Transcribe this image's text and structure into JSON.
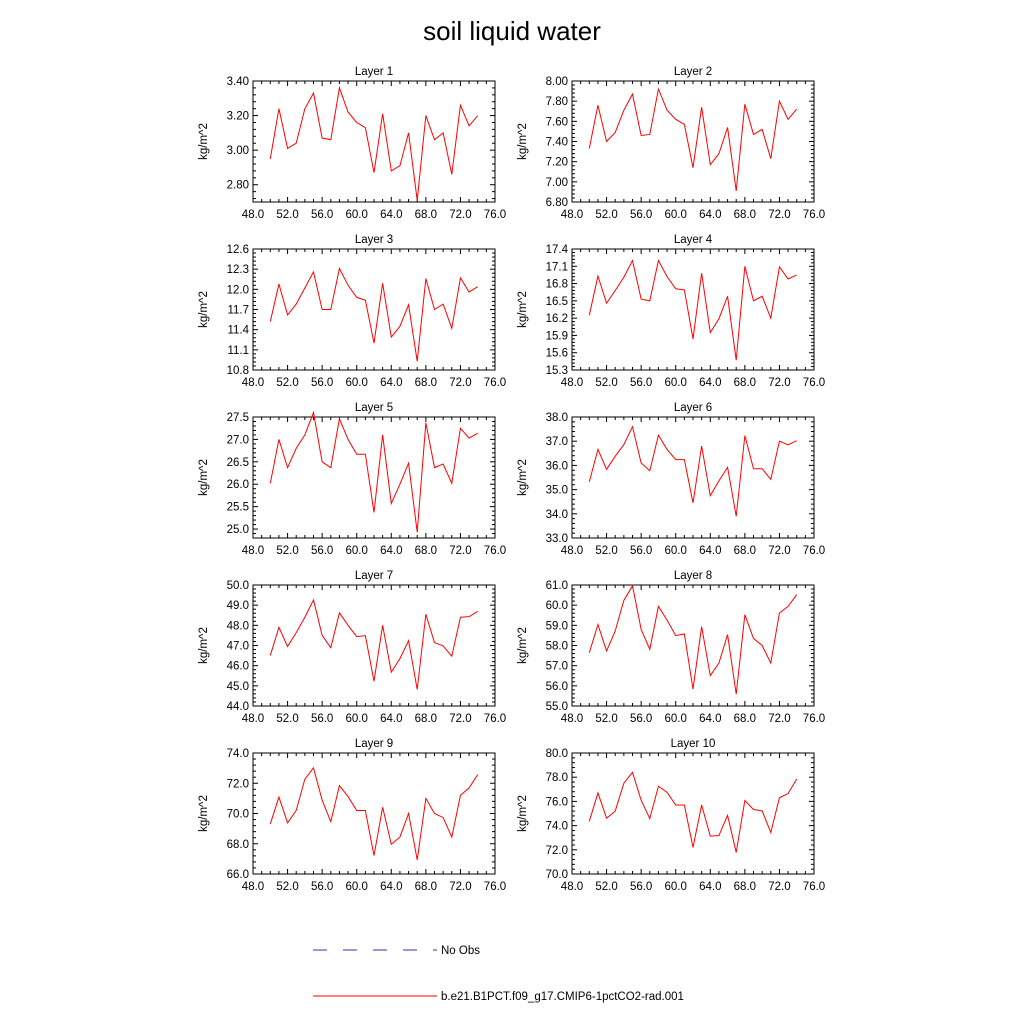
{
  "figure_title": "soil liquid water",
  "legend": [
    {
      "label": "No Obs",
      "color": "#3333aa",
      "dash": true
    },
    {
      "label": "b.e21.B1PCT.f09_g17.CMIP6-1pctCO2-rad.001",
      "color": "#ff0000",
      "dash": false
    }
  ],
  "chart_data": [
    {
      "type": "line",
      "title": "Layer 1",
      "ylabel": "kg/m^2",
      "xlim": [
        48,
        76
      ],
      "ylim": [
        2.7,
        3.4
      ],
      "xticks": [
        "48.0",
        "52.0",
        "56.0",
        "60.0",
        "64.0",
        "68.0",
        "72.0",
        "76.0"
      ],
      "yticks": [
        2.8,
        3.0,
        3.2,
        3.4
      ],
      "yticklabels": [
        "2.80",
        "3.00",
        "3.20",
        "3.40"
      ],
      "x": [
        50,
        51,
        52,
        53,
        54,
        55,
        56,
        57,
        58,
        59,
        60,
        61,
        62,
        63,
        64,
        65,
        66,
        67,
        68,
        69,
        70,
        71,
        72,
        73,
        74
      ],
      "series": [
        {
          "color": "#ff0000",
          "values": [
            2.95,
            3.24,
            3.01,
            3.04,
            3.24,
            3.33,
            3.07,
            3.06,
            3.36,
            3.22,
            3.16,
            3.13,
            2.87,
            3.21,
            2.88,
            2.91,
            3.1,
            2.71,
            3.2,
            3.06,
            3.1,
            2.86,
            3.26,
            3.14,
            3.2
          ]
        }
      ]
    },
    {
      "type": "line",
      "title": "Layer 2",
      "ylabel": "kg/m^2",
      "xlim": [
        48,
        76
      ],
      "ylim": [
        6.8,
        8.0
      ],
      "xticks": [
        "48.0",
        "52.0",
        "56.0",
        "60.0",
        "64.0",
        "68.0",
        "72.0",
        "76.0"
      ],
      "yticks": [
        6.8,
        7.0,
        7.2,
        7.4,
        7.6,
        7.8,
        8.0
      ],
      "yticklabels": [
        "6.80",
        "7.00",
        "7.20",
        "7.40",
        "7.60",
        "7.80",
        "8.00"
      ],
      "x": [
        50,
        51,
        52,
        53,
        54,
        55,
        56,
        57,
        58,
        59,
        60,
        61,
        62,
        63,
        64,
        65,
        66,
        67,
        68,
        69,
        70,
        71,
        72,
        73,
        74
      ],
      "series": [
        {
          "color": "#ff0000",
          "values": [
            7.33,
            7.76,
            7.4,
            7.49,
            7.71,
            7.87,
            7.46,
            7.47,
            7.92,
            7.71,
            7.62,
            7.57,
            7.14,
            7.74,
            7.17,
            7.28,
            7.54,
            6.91,
            7.77,
            7.47,
            7.52,
            7.23,
            7.8,
            7.62,
            7.72
          ]
        }
      ]
    },
    {
      "type": "line",
      "title": "Layer 3",
      "ylabel": "kg/m^2",
      "xlim": [
        48,
        76
      ],
      "ylim": [
        10.8,
        12.6
      ],
      "xticks": [
        "48.0",
        "52.0",
        "56.0",
        "60.0",
        "64.0",
        "68.0",
        "72.0",
        "76.0"
      ],
      "yticks": [
        10.8,
        11.1,
        11.4,
        11.7,
        12.0,
        12.3,
        12.6
      ],
      "yticklabels": [
        "10.8",
        "11.1",
        "11.4",
        "11.7",
        "12.0",
        "12.3",
        "12.6"
      ],
      "x": [
        50,
        51,
        52,
        53,
        54,
        55,
        56,
        57,
        58,
        59,
        60,
        61,
        62,
        63,
        64,
        65,
        66,
        67,
        68,
        69,
        70,
        71,
        72,
        73,
        74
      ],
      "series": [
        {
          "color": "#ff0000",
          "values": [
            11.52,
            12.08,
            11.62,
            11.78,
            12.02,
            12.26,
            11.7,
            11.7,
            12.31,
            12.06,
            11.88,
            11.84,
            11.2,
            12.09,
            11.29,
            11.45,
            11.77,
            10.93,
            12.16,
            11.7,
            11.78,
            11.42,
            12.17,
            11.96,
            12.04
          ]
        }
      ]
    },
    {
      "type": "line",
      "title": "Layer 4",
      "ylabel": "kg/m^2",
      "xlim": [
        48,
        76
      ],
      "ylim": [
        15.3,
        17.4
      ],
      "xticks": [
        "48.0",
        "52.0",
        "56.0",
        "60.0",
        "64.0",
        "68.0",
        "72.0",
        "76.0"
      ],
      "yticks": [
        15.3,
        15.6,
        15.9,
        16.2,
        16.5,
        16.8,
        17.1,
        17.4
      ],
      "yticklabels": [
        "15.3",
        "15.6",
        "15.9",
        "16.2",
        "16.5",
        "16.8",
        "17.1",
        "17.4"
      ],
      "x": [
        50,
        51,
        52,
        53,
        54,
        55,
        56,
        57,
        58,
        59,
        60,
        61,
        62,
        63,
        64,
        65,
        66,
        67,
        68,
        69,
        70,
        71,
        72,
        73,
        74
      ],
      "series": [
        {
          "color": "#ff0000",
          "values": [
            16.25,
            16.93,
            16.46,
            16.68,
            16.91,
            17.2,
            16.53,
            16.5,
            17.2,
            16.92,
            16.71,
            16.69,
            15.84,
            16.98,
            15.95,
            16.19,
            16.58,
            15.47,
            17.1,
            16.5,
            16.58,
            16.2,
            17.09,
            16.88,
            16.95
          ]
        }
      ]
    },
    {
      "type": "line",
      "title": "Layer 5",
      "ylabel": "kg/m^2",
      "xlim": [
        48,
        76
      ],
      "ylim": [
        24.8,
        27.5
      ],
      "xticks": [
        "48.0",
        "52.0",
        "56.0",
        "60.0",
        "64.0",
        "68.0",
        "72.0",
        "76.0"
      ],
      "yticks": [
        25.0,
        25.5,
        26.0,
        26.5,
        27.0,
        27.5
      ],
      "yticklabels": [
        "25.0",
        "25.5",
        "26.0",
        "26.5",
        "27.0",
        "27.5"
      ],
      "x": [
        50,
        51,
        52,
        53,
        54,
        55,
        56,
        57,
        58,
        59,
        60,
        61,
        62,
        63,
        64,
        65,
        66,
        67,
        68,
        69,
        70,
        71,
        72,
        73,
        74
      ],
      "series": [
        {
          "color": "#ff0000",
          "values": [
            26.02,
            27.0,
            26.37,
            26.8,
            27.1,
            27.6,
            26.5,
            26.37,
            27.46,
            27.0,
            26.67,
            26.67,
            25.37,
            27.1,
            25.57,
            26.0,
            26.47,
            24.93,
            27.37,
            26.37,
            26.45,
            26.02,
            27.25,
            27.03,
            27.14
          ]
        }
      ]
    },
    {
      "type": "line",
      "title": "Layer 6",
      "ylabel": "kg/m^2",
      "xlim": [
        48,
        76
      ],
      "ylim": [
        33.0,
        38.0
      ],
      "xticks": [
        "48.0",
        "52.0",
        "56.0",
        "60.0",
        "64.0",
        "68.0",
        "72.0",
        "76.0"
      ],
      "yticks": [
        33.0,
        34.0,
        35.0,
        36.0,
        37.0,
        38.0
      ],
      "yticklabels": [
        "33.0",
        "34.0",
        "35.0",
        "36.0",
        "37.0",
        "38.0"
      ],
      "x": [
        50,
        51,
        52,
        53,
        54,
        55,
        56,
        57,
        58,
        59,
        60,
        61,
        62,
        63,
        64,
        65,
        66,
        67,
        68,
        69,
        70,
        71,
        72,
        73,
        74
      ],
      "series": [
        {
          "color": "#ff0000",
          "values": [
            35.32,
            36.66,
            35.84,
            36.38,
            36.86,
            37.6,
            36.1,
            35.78,
            37.25,
            36.66,
            36.24,
            36.24,
            34.45,
            36.8,
            34.75,
            35.36,
            35.92,
            33.9,
            37.23,
            35.86,
            35.86,
            35.42,
            37.0,
            36.85,
            37.02
          ]
        }
      ]
    },
    {
      "type": "line",
      "title": "Layer 7",
      "ylabel": "kg/m^2",
      "xlim": [
        48,
        76
      ],
      "ylim": [
        44.0,
        50.0
      ],
      "xticks": [
        "48.0",
        "52.0",
        "56.0",
        "60.0",
        "64.0",
        "68.0",
        "72.0",
        "76.0"
      ],
      "yticks": [
        44.0,
        45.0,
        46.0,
        47.0,
        48.0,
        49.0,
        50.0
      ],
      "yticklabels": [
        "44.0",
        "45.0",
        "46.0",
        "47.0",
        "48.0",
        "49.0",
        "50.0"
      ],
      "x": [
        50,
        51,
        52,
        53,
        54,
        55,
        56,
        57,
        58,
        59,
        60,
        61,
        62,
        63,
        64,
        65,
        66,
        67,
        68,
        69,
        70,
        71,
        72,
        73,
        74
      ],
      "series": [
        {
          "color": "#ff0000",
          "values": [
            46.5,
            47.9,
            46.95,
            47.64,
            48.4,
            49.26,
            47.5,
            46.89,
            48.62,
            48.0,
            47.44,
            47.49,
            45.23,
            48.0,
            45.68,
            46.35,
            47.24,
            44.82,
            48.55,
            47.14,
            46.98,
            46.47,
            48.4,
            48.43,
            48.69
          ]
        }
      ]
    },
    {
      "type": "line",
      "title": "Layer 8",
      "ylabel": "kg/m^2",
      "xlim": [
        48,
        76
      ],
      "ylim": [
        55.0,
        61.0
      ],
      "xticks": [
        "48.0",
        "52.0",
        "56.0",
        "60.0",
        "64.0",
        "68.0",
        "72.0",
        "76.0"
      ],
      "yticks": [
        55.0,
        56.0,
        57.0,
        58.0,
        59.0,
        60.0,
        61.0
      ],
      "yticklabels": [
        "55.0",
        "56.0",
        "57.0",
        "58.0",
        "59.0",
        "60.0",
        "61.0"
      ],
      "x": [
        50,
        51,
        52,
        53,
        54,
        55,
        56,
        57,
        58,
        59,
        60,
        61,
        62,
        63,
        64,
        65,
        66,
        67,
        68,
        69,
        70,
        71,
        72,
        73,
        74
      ],
      "series": [
        {
          "color": "#ff0000",
          "values": [
            57.64,
            59.04,
            57.73,
            58.72,
            60.24,
            60.96,
            58.8,
            57.81,
            59.94,
            59.26,
            58.49,
            58.57,
            55.84,
            58.93,
            56.51,
            57.13,
            58.54,
            55.59,
            59.53,
            58.35,
            58.0,
            57.13,
            59.61,
            59.94,
            60.52
          ]
        }
      ]
    },
    {
      "type": "line",
      "title": "Layer 9",
      "ylabel": "kg/m^2",
      "xlim": [
        48,
        76
      ],
      "ylim": [
        66.0,
        74.0
      ],
      "xticks": [
        "48.0",
        "52.0",
        "56.0",
        "60.0",
        "64.0",
        "68.0",
        "72.0",
        "76.0"
      ],
      "yticks": [
        66.0,
        68.0,
        70.0,
        72.0,
        74.0
      ],
      "yticklabels": [
        "66.0",
        "68.0",
        "70.0",
        "72.0",
        "74.0"
      ],
      "x": [
        50,
        51,
        52,
        53,
        54,
        55,
        56,
        57,
        58,
        59,
        60,
        61,
        62,
        63,
        64,
        65,
        66,
        67,
        68,
        69,
        70,
        71,
        72,
        73,
        74
      ],
      "series": [
        {
          "color": "#ff0000",
          "values": [
            69.31,
            71.08,
            69.38,
            70.2,
            72.27,
            73.02,
            70.88,
            69.46,
            71.84,
            71.12,
            70.2,
            70.2,
            67.22,
            70.41,
            67.97,
            68.44,
            70.0,
            66.94,
            71.0,
            70.0,
            69.73,
            68.44,
            71.2,
            71.69,
            72.57
          ]
        }
      ]
    },
    {
      "type": "line",
      "title": "Layer 10",
      "ylabel": "kg/m^2",
      "xlim": [
        48,
        76
      ],
      "ylim": [
        70.0,
        80.0
      ],
      "xticks": [
        "48.0",
        "52.0",
        "56.0",
        "60.0",
        "64.0",
        "68.0",
        "72.0",
        "76.0"
      ],
      "yticks": [
        70.0,
        72.0,
        74.0,
        76.0,
        78.0,
        80.0
      ],
      "yticklabels": [
        "70.0",
        "72.0",
        "74.0",
        "76.0",
        "78.0",
        "80.0"
      ],
      "x": [
        50,
        51,
        52,
        53,
        54,
        55,
        56,
        57,
        58,
        59,
        60,
        61,
        62,
        63,
        64,
        65,
        66,
        67,
        68,
        69,
        70,
        71,
        72,
        73,
        74
      ],
      "series": [
        {
          "color": "#ff0000",
          "values": [
            74.35,
            76.7,
            74.62,
            75.2,
            77.5,
            78.4,
            76.1,
            74.58,
            77.25,
            76.75,
            75.7,
            75.7,
            72.2,
            75.7,
            73.13,
            73.18,
            74.85,
            71.78,
            76.08,
            75.33,
            75.22,
            73.43,
            76.3,
            76.65,
            77.85
          ]
        }
      ]
    }
  ]
}
